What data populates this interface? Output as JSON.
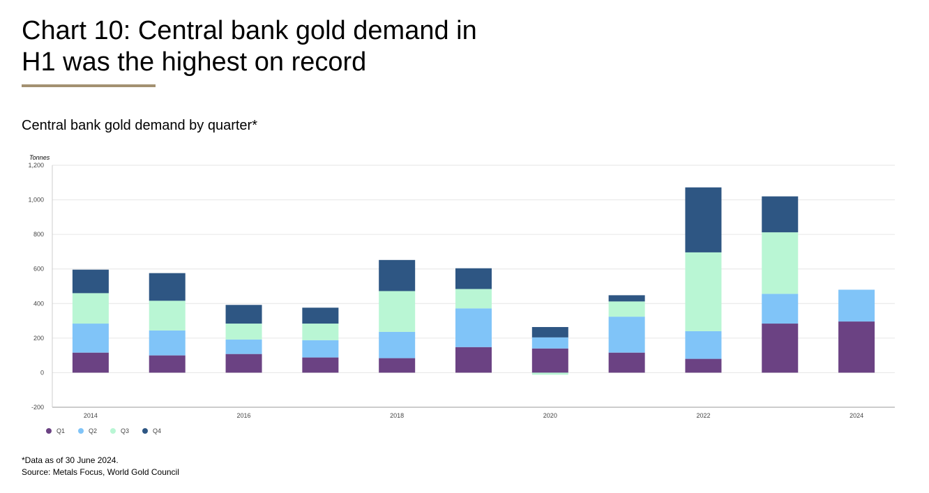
{
  "chart_data": {
    "type": "bar",
    "stacked": true,
    "title_lines": [
      "Chart 10: Central bank gold demand in",
      "H1 was the highest on record"
    ],
    "subtitle": "Central bank gold demand by quarter*",
    "y_label": "Tonnes",
    "categories": [
      "2014",
      null,
      "2016",
      null,
      "2018",
      null,
      "2020",
      null,
      "2022",
      null,
      "2024"
    ],
    "series": [
      {
        "name": "Q1",
        "color": "#6b4283",
        "values": [
          116,
          100,
          108,
          88,
          84,
          148,
          140,
          116,
          80,
          284,
          296
        ]
      },
      {
        "name": "Q2",
        "color": "#80c4f8",
        "values": [
          168,
          144,
          84,
          100,
          152,
          224,
          64,
          208,
          160,
          172,
          184
        ]
      },
      {
        "name": "Q3",
        "color": "#b9f6d4",
        "values": [
          176,
          172,
          92,
          96,
          236,
          112,
          -12,
          88,
          456,
          356,
          null
        ]
      },
      {
        "name": "Q4",
        "color": "#2e5683",
        "values": [
          136,
          160,
          108,
          92,
          180,
          120,
          60,
          36,
          376,
          208,
          null
        ]
      }
    ],
    "ylim": [
      -200,
      1200
    ],
    "yticks": [
      -200,
      0,
      200,
      400,
      600,
      800,
      {
        "value": 1000,
        "label": "1,000"
      },
      {
        "value": 1200,
        "label": "1,200"
      }
    ],
    "grid": true,
    "legend": "bottom-left",
    "footnotes": [
      "*Data as of 30 June 2024.",
      "Source: Metals Focus, World Gold Council"
    ]
  }
}
